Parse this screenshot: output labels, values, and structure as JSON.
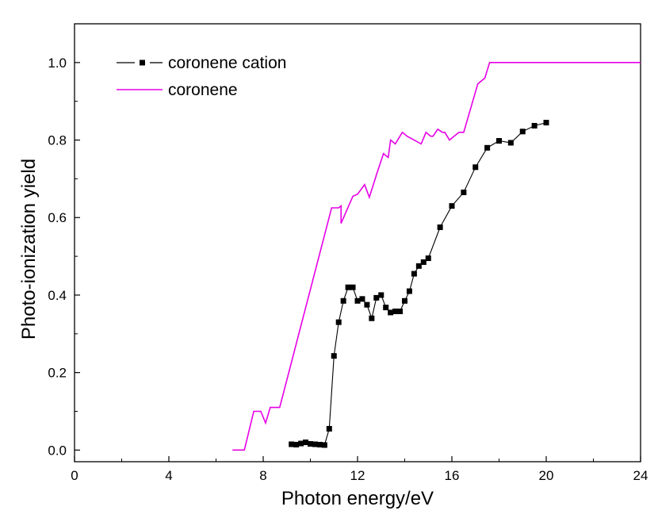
{
  "chart_data": {
    "type": "line",
    "title": "",
    "xlabel": "Photon energy/eV",
    "ylabel": "Photo-ionization yield",
    "xlim": [
      0,
      24
    ],
    "ylim": [
      -0.03,
      1.1
    ],
    "xticks": [
      0,
      4,
      8,
      12,
      16,
      20,
      24
    ],
    "yticks": [
      0.0,
      0.2,
      0.4,
      0.6,
      0.8,
      1.0
    ],
    "xtick_labels": [
      "0",
      "4",
      "8",
      "12",
      "16",
      "20",
      "24"
    ],
    "ytick_labels": [
      "0.0",
      "0.2",
      "0.4",
      "0.6",
      "0.8",
      "1.0"
    ],
    "legend_position": "top-left",
    "series": [
      {
        "name": "coronene cation",
        "color": "#000000",
        "marker": "square",
        "x": [
          9.2,
          9.4,
          9.6,
          9.8,
          10.0,
          10.2,
          10.4,
          10.6,
          10.8,
          11.0,
          11.2,
          11.4,
          11.6,
          11.8,
          12.0,
          12.2,
          12.4,
          12.6,
          12.8,
          13.0,
          13.2,
          13.4,
          13.6,
          13.8,
          14.0,
          14.2,
          14.4,
          14.6,
          14.8,
          15.0,
          15.5,
          16.0,
          16.5,
          17.0,
          17.5,
          18.0,
          18.5,
          19.0,
          19.5,
          20.0
        ],
        "y": [
          0.015,
          0.014,
          0.017,
          0.02,
          0.016,
          0.015,
          0.014,
          0.013,
          0.055,
          0.243,
          0.33,
          0.385,
          0.42,
          0.42,
          0.385,
          0.39,
          0.375,
          0.34,
          0.393,
          0.4,
          0.368,
          0.355,
          0.358,
          0.358,
          0.385,
          0.41,
          0.455,
          0.475,
          0.485,
          0.495,
          0.575,
          0.63,
          0.665,
          0.73,
          0.78,
          0.798,
          0.793,
          0.822,
          0.837,
          0.845
        ]
      },
      {
        "name": "coronene",
        "color": "#e600e6",
        "marker": "none",
        "x": [
          6.7,
          7.2,
          7.6,
          7.9,
          8.1,
          8.3,
          8.7,
          10.9,
          11.2,
          11.3,
          11.3,
          11.8,
          12.0,
          12.3,
          12.5,
          12.8,
          13.1,
          13.3,
          13.4,
          13.6,
          13.9,
          14.1,
          14.7,
          14.9,
          15.1,
          15.2,
          15.4,
          15.6,
          15.7,
          15.9,
          16.3,
          16.5,
          17.1,
          17.4,
          17.6,
          18.0,
          24.0
        ],
        "y": [
          0.0,
          0.0,
          0.1,
          0.1,
          0.07,
          0.11,
          0.11,
          0.625,
          0.625,
          0.63,
          0.585,
          0.655,
          0.66,
          0.685,
          0.652,
          0.71,
          0.765,
          0.755,
          0.8,
          0.79,
          0.82,
          0.81,
          0.79,
          0.82,
          0.81,
          0.81,
          0.828,
          0.82,
          0.82,
          0.8,
          0.82,
          0.82,
          0.945,
          0.96,
          1.0,
          1.0,
          1.0
        ]
      }
    ]
  }
}
